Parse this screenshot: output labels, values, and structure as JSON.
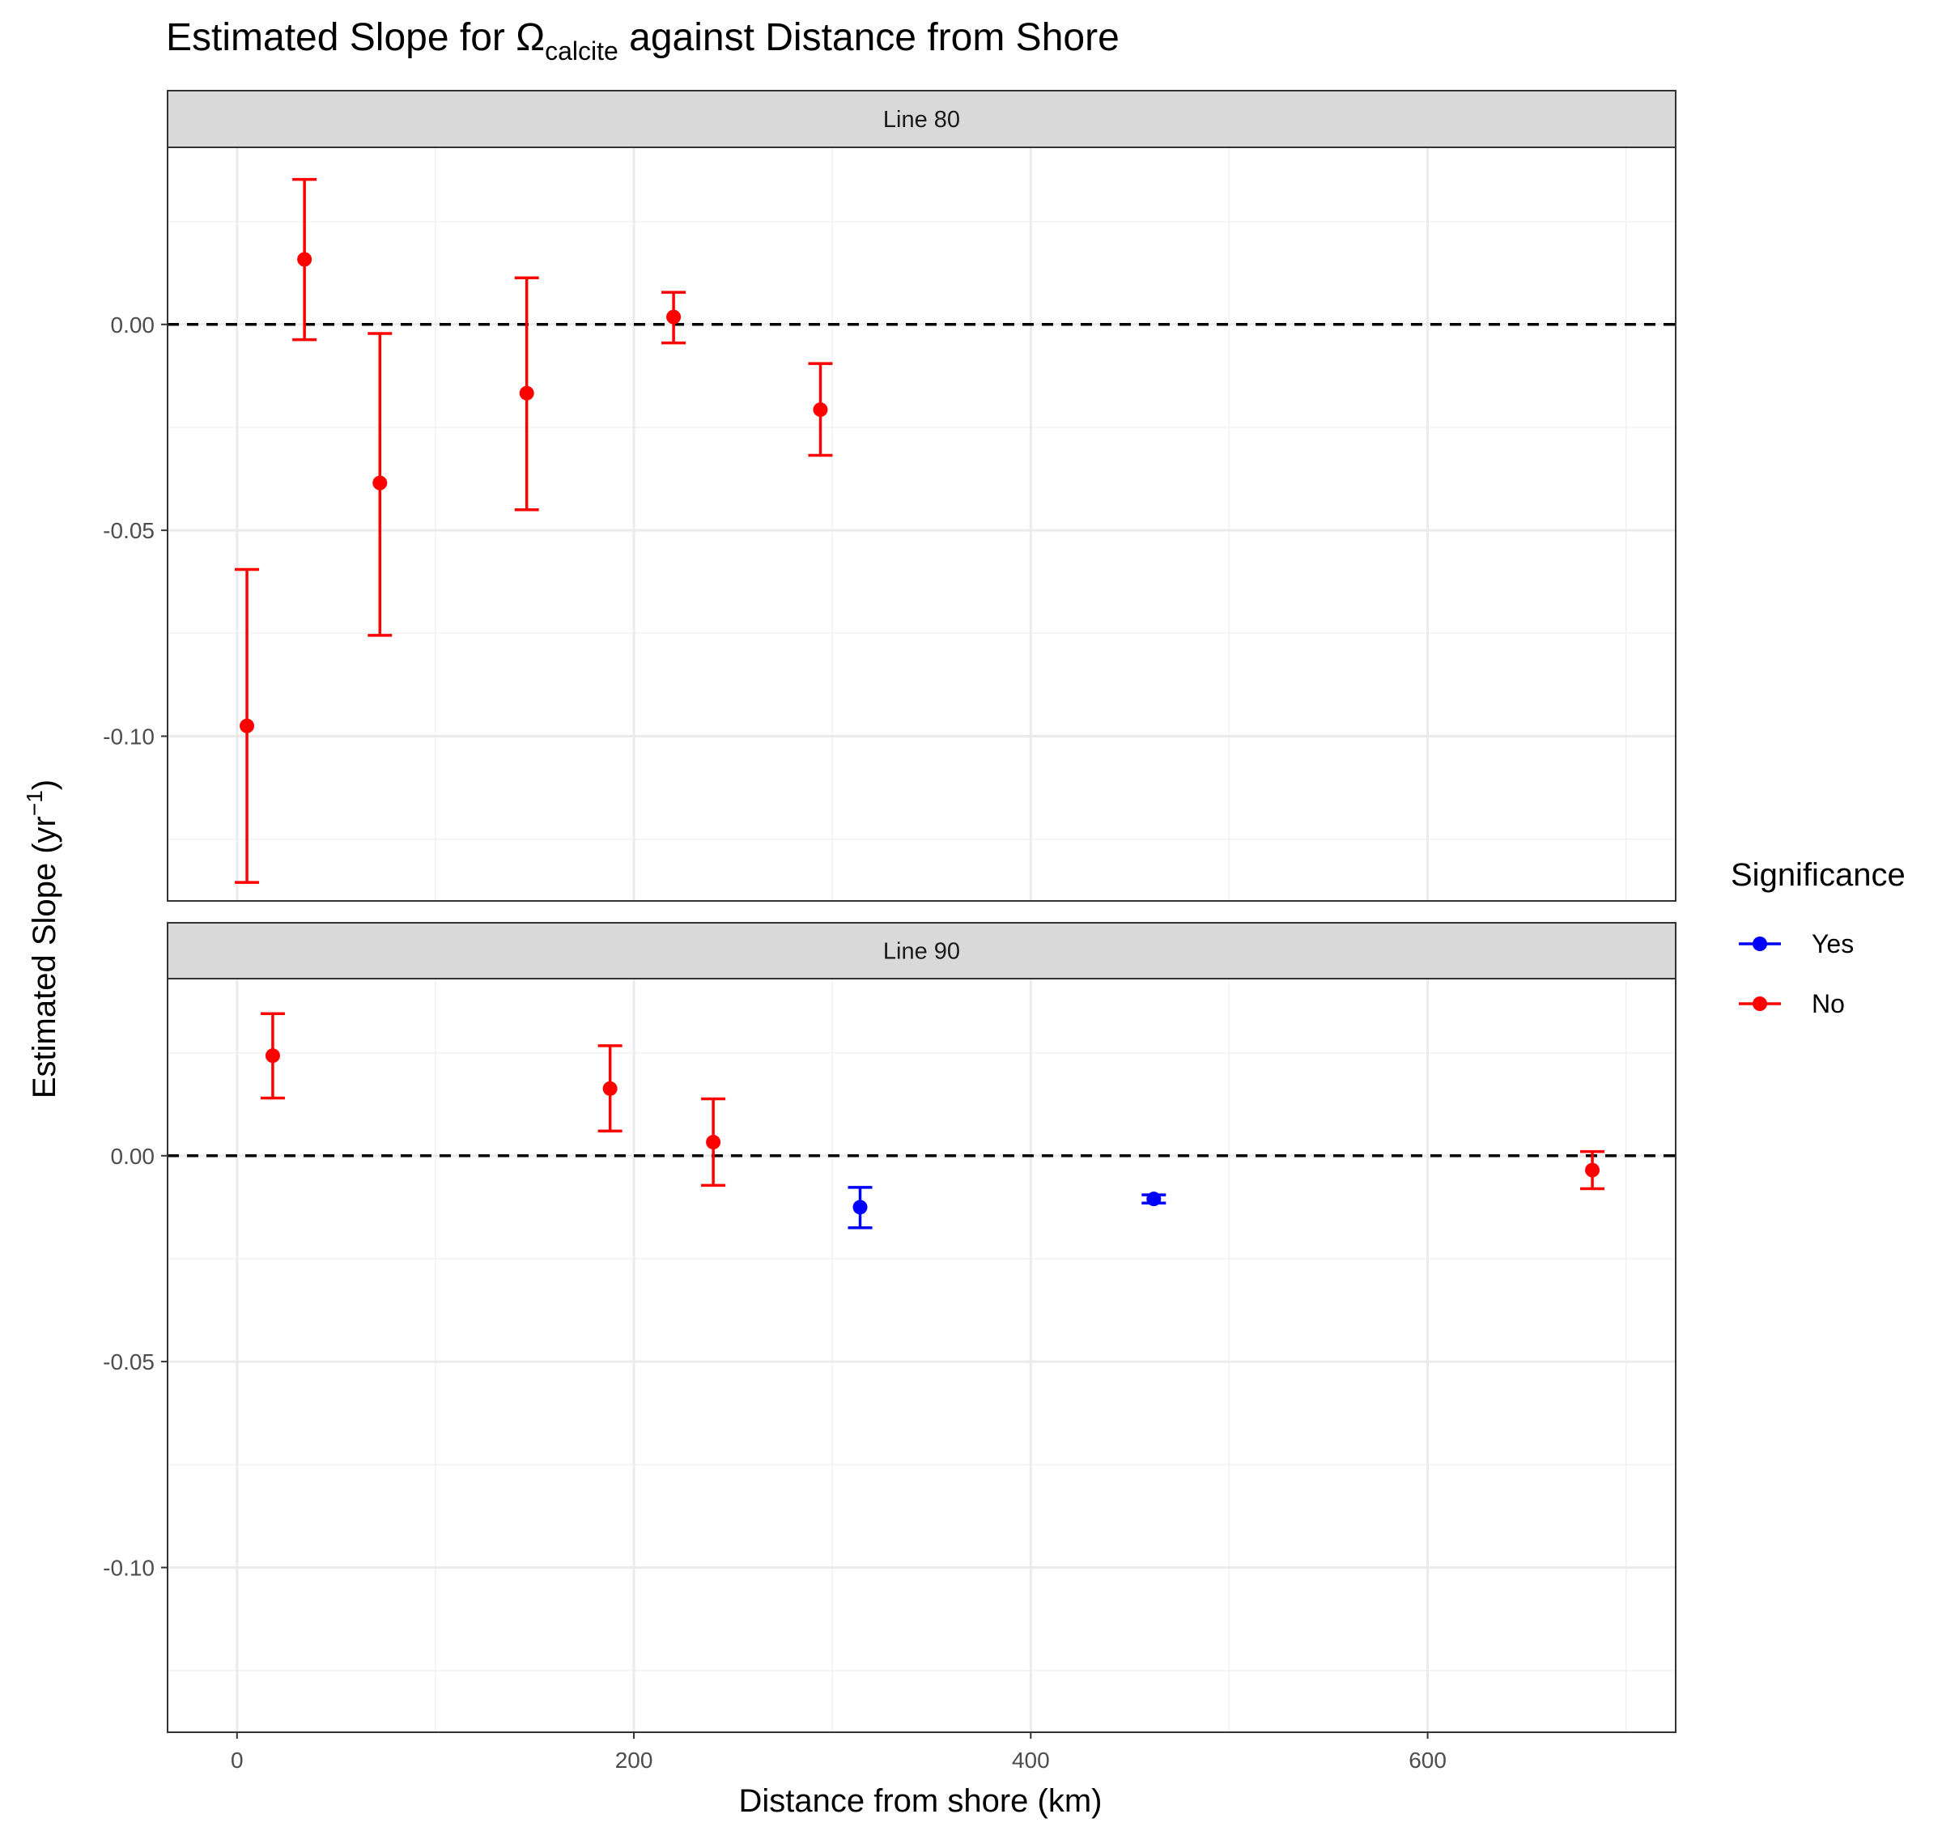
{
  "chart_data": {
    "type": "scatter",
    "title": {
      "pre": "Estimated Slope for Ω",
      "sub": "calcite",
      "post": " against Distance from Shore"
    },
    "xlabel": "Distance from shore (km)",
    "ylabel": {
      "pre": "Estimated Slope (yr",
      "sup": "−1",
      "post": ")"
    },
    "xlim": [
      -35,
      725
    ],
    "ylim": [
      -0.14,
      0.043
    ],
    "x_ticks": [
      0,
      200,
      400,
      600
    ],
    "x_tick_labels": [
      "0",
      "200",
      "400",
      "600"
    ],
    "y_ticks": [
      0.0,
      -0.05,
      -0.1
    ],
    "y_tick_labels": [
      "0.00",
      "-0.05",
      "-0.10"
    ],
    "grid": true,
    "reference_line": {
      "y": 0,
      "style": "dashed",
      "color": "#000000"
    },
    "legend": {
      "title": "Significance",
      "position": "right",
      "entries": [
        {
          "label": "Yes",
          "color": "#0000ff"
        },
        {
          "label": "No",
          "color": "#ff0000"
        }
      ]
    },
    "panels": [
      {
        "label": "Line 80",
        "points": [
          {
            "x": 5,
            "y": -0.0975,
            "lower": -0.1355,
            "upper": -0.0595,
            "significant": "No"
          },
          {
            "x": 34,
            "y": 0.0158,
            "lower": -0.0037,
            "upper": 0.0352,
            "significant": "No"
          },
          {
            "x": 72,
            "y": -0.0385,
            "lower": -0.0755,
            "upper": -0.0022,
            "significant": "No"
          },
          {
            "x": 146,
            "y": -0.0167,
            "lower": -0.045,
            "upper": 0.0113,
            "significant": "No"
          },
          {
            "x": 220,
            "y": 0.0018,
            "lower": -0.0045,
            "upper": 0.0078,
            "significant": "No"
          },
          {
            "x": 294,
            "y": -0.0207,
            "lower": -0.0318,
            "upper": -0.0095,
            "significant": "No"
          }
        ]
      },
      {
        "label": "Line 90",
        "points": [
          {
            "x": 18,
            "y": 0.0243,
            "lower": 0.014,
            "upper": 0.0345,
            "significant": "No"
          },
          {
            "x": 188,
            "y": 0.0163,
            "lower": 0.006,
            "upper": 0.0267,
            "significant": "No"
          },
          {
            "x": 240,
            "y": 0.0033,
            "lower": -0.0072,
            "upper": 0.0138,
            "significant": "No"
          },
          {
            "x": 314,
            "y": -0.0125,
            "lower": -0.0175,
            "upper": -0.0077,
            "significant": "Yes"
          },
          {
            "x": 462,
            "y": -0.0105,
            "lower": -0.0115,
            "upper": -0.0095,
            "significant": "Yes"
          },
          {
            "x": 683,
            "y": -0.0035,
            "lower": -0.008,
            "upper": 0.001,
            "significant": "No"
          }
        ]
      }
    ]
  }
}
